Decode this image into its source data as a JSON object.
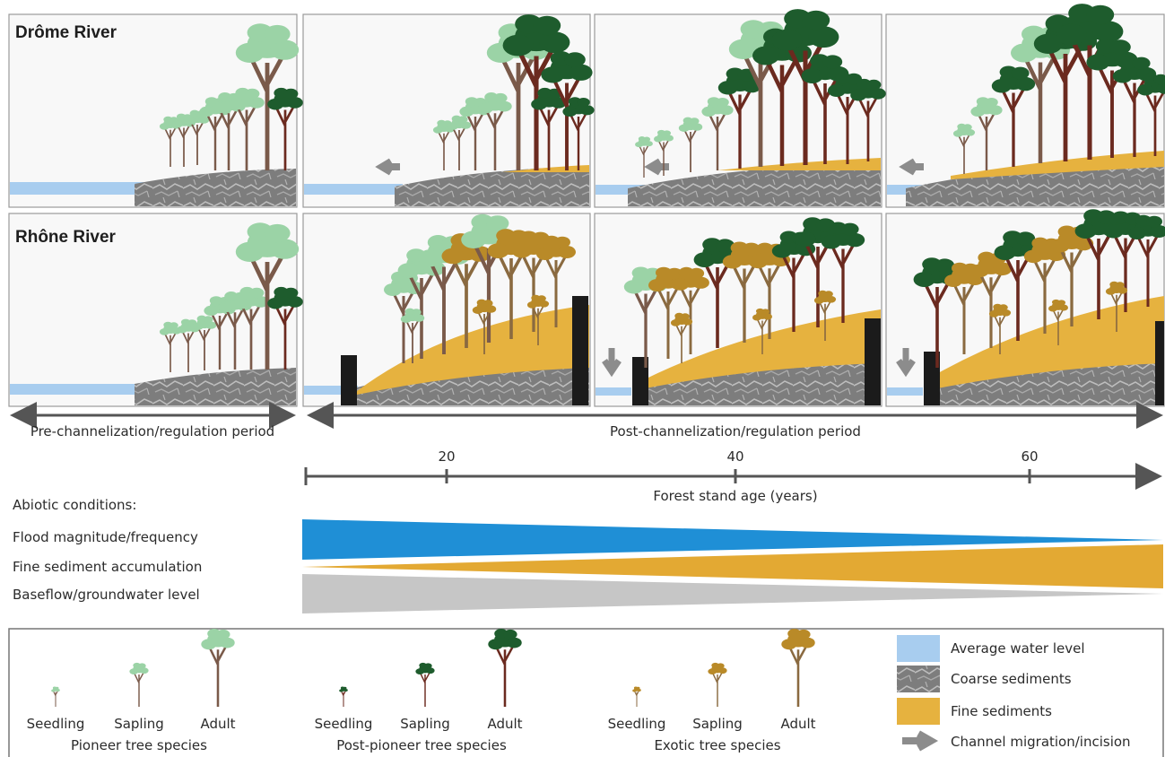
{
  "rows": [
    {
      "title": "Drôme River"
    },
    {
      "title": "Rhône River"
    }
  ],
  "periods": {
    "pre": "Pre-channelization/regulation period",
    "post": "Post-channelization/regulation period"
  },
  "timeline": {
    "label": "Forest stand age (years)",
    "ticks": [
      "20",
      "40",
      "60"
    ]
  },
  "abiotic": {
    "heading": "Abiotic conditions:",
    "items": [
      {
        "label": "Flood magnitude/frequency",
        "color": "#1f8fd6",
        "trend": "decreasing"
      },
      {
        "label": "Fine sediment accumulation",
        "color": "#e3a933",
        "trend": "increasing"
      },
      {
        "label": "Baseflow/groundwater level",
        "color": "#c6c6c6",
        "trend": "decreasing"
      }
    ]
  },
  "legend": {
    "groups": [
      {
        "name": "Pioneer tree species",
        "stages": [
          "Seedling",
          "Sapling",
          "Adult"
        ],
        "color": "#9bd3a6"
      },
      {
        "name": "Post-pioneer tree species",
        "stages": [
          "Seedling",
          "Sapling",
          "Adult"
        ],
        "color": "#1e5c2d"
      },
      {
        "name": "Exotic tree species",
        "stages": [
          "Seedling",
          "Sapling",
          "Adult"
        ],
        "color": "#b98a28"
      }
    ],
    "keys": [
      {
        "label": "Average water level",
        "color": "#a8cdef",
        "icon": "swatch"
      },
      {
        "label": "Coarse sediments",
        "color": "#8e8e8e",
        "icon": "swatch"
      },
      {
        "label": "Fine sediments",
        "color": "#e6b23f",
        "icon": "swatch"
      },
      {
        "label": "Channel migration/incision",
        "color": "#8c8c8c",
        "icon": "arrow-icon"
      }
    ]
  }
}
